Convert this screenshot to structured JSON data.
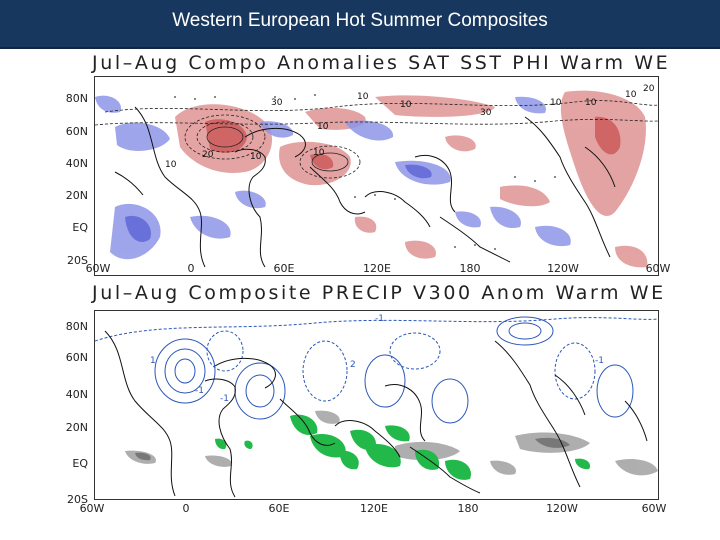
{
  "header": {
    "title": "Western European Hot Summer Composites"
  },
  "top_panel": {
    "title": "Jul–Aug Compo Anomalies SAT SST PHI Warm WE",
    "lat_labels": [
      "80N",
      "60N",
      "40N",
      "20N",
      "EQ",
      "20S"
    ],
    "lon_labels": [
      "60W",
      "0",
      "60E",
      "120E",
      "180",
      "120W",
      "60W"
    ],
    "contour_labels": [
      "30",
      "10",
      "10",
      "10",
      "30",
      "10",
      "10",
      "10",
      "20",
      "10",
      "10",
      "10",
      "20"
    ]
  },
  "bottom_panel": {
    "title": "Jul–Aug Composite PRECIP V300 Anom Warm WE",
    "lat_labels": [
      "80N",
      "60N",
      "40N",
      "20N",
      "EQ",
      "20S"
    ],
    "lon_labels": [
      "60W",
      "0",
      "60E",
      "120E",
      "180",
      "120W",
      "60W"
    ],
    "contour_labels": [
      "-1",
      "1",
      "-1",
      "-1",
      "2",
      "-1"
    ]
  },
  "colors": {
    "header_bg": "#17375e",
    "warm_anomaly": "#d98080",
    "cold_anomaly": "#7f86e0",
    "wet_anomaly": "#22b84a",
    "dry_anomaly": "#9a9a9a",
    "v300_contour": "#2a57b8"
  }
}
